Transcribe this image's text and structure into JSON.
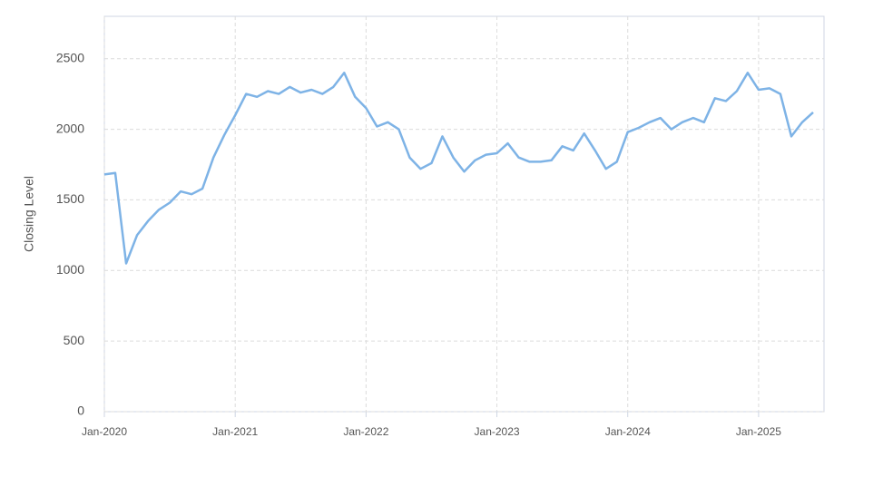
{
  "chart_data": {
    "type": "line",
    "y_label": "Closing Level",
    "x": [
      "2020-01",
      "2020-02",
      "2020-03",
      "2020-04",
      "2020-05",
      "2020-06",
      "2020-07",
      "2020-08",
      "2020-09",
      "2020-10",
      "2020-11",
      "2020-12",
      "2021-01",
      "2021-02",
      "2021-03",
      "2021-04",
      "2021-05",
      "2021-06",
      "2021-07",
      "2021-08",
      "2021-09",
      "2021-10",
      "2021-11",
      "2021-12",
      "2022-01",
      "2022-02",
      "2022-03",
      "2022-04",
      "2022-05",
      "2022-06",
      "2022-07",
      "2022-08",
      "2022-09",
      "2022-10",
      "2022-11",
      "2022-12",
      "2023-01",
      "2023-02",
      "2023-03",
      "2023-04",
      "2023-05",
      "2023-06",
      "2023-07",
      "2023-08",
      "2023-09",
      "2023-10",
      "2023-11",
      "2023-12",
      "2024-01",
      "2024-02",
      "2024-03",
      "2024-04",
      "2024-05",
      "2024-06",
      "2024-07",
      "2024-08",
      "2024-09",
      "2024-10",
      "2024-11",
      "2024-12",
      "2025-01",
      "2025-02",
      "2025-03",
      "2025-04",
      "2025-05",
      "2025-06"
    ],
    "series": [
      {
        "color": "#7eb3e6",
        "values": [
          1680,
          1690,
          1050,
          1250,
          1350,
          1430,
          1480,
          1560,
          1540,
          1580,
          1800,
          1960,
          2100,
          2250,
          2230,
          2270,
          2250,
          2300,
          2260,
          2280,
          2250,
          2300,
          2400,
          2230,
          2150,
          2020,
          2050,
          2000,
          1800,
          1720,
          1760,
          1950,
          1800,
          1700,
          1780,
          1820,
          1830,
          1900,
          1800,
          1770,
          1770,
          1780,
          1880,
          1850,
          1970,
          1850,
          1720,
          1770,
          1980,
          2010,
          2050,
          2080,
          2000,
          2050,
          2080,
          2050,
          2220,
          2200,
          2270,
          2400,
          2280,
          2290,
          2250,
          1950,
          2050,
          2120
        ]
      }
    ],
    "xlim": [
      "2020-01",
      "2025-07"
    ],
    "xticks": [
      {
        "value": "2020-01",
        "label": "Jan-2020"
      },
      {
        "value": "2021-01",
        "label": "Jan-2021"
      },
      {
        "value": "2022-01",
        "label": "Jan-2022"
      },
      {
        "value": "2023-01",
        "label": "Jan-2023"
      },
      {
        "value": "2024-01",
        "label": "Jan-2024"
      },
      {
        "value": "2025-01",
        "label": "Jan-2025"
      }
    ],
    "ylim": [
      0,
      2800
    ],
    "yticks": [
      0,
      500,
      1000,
      1500,
      2000,
      2500
    ],
    "grid": true
  }
}
